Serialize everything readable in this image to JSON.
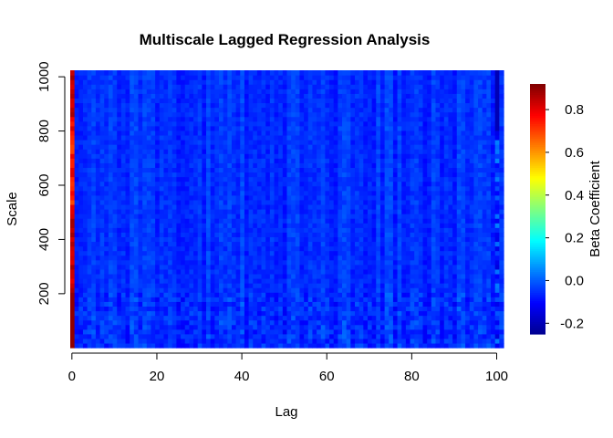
{
  "chart_data": {
    "type": "heatmap",
    "title": "Multiscale Lagged Regression Analysis",
    "xlabel": "Lag",
    "ylabel": "Scale",
    "colorbar_label": "Beta Coefficient",
    "x_range": [
      0,
      101
    ],
    "y_range": [
      1,
      1024
    ],
    "x_ticks": [
      0,
      20,
      40,
      60,
      80,
      100
    ],
    "y_ticks": [
      200,
      400,
      600,
      800,
      1000
    ],
    "colorbar_range": [
      -0.25,
      0.92
    ],
    "colorbar_ticks": [
      -0.2,
      0.0,
      0.2,
      0.4,
      0.6,
      0.8
    ],
    "colormap": "jet",
    "summary_values": {
      "lag_0_scale_1_to_200": 0.9,
      "lag_0_scale_500_to_850": 0.75,
      "lag_100_scale_800_to_1000": -0.2,
      "lags_1_to_99_typical": -0.05,
      "lags_1_to_99_range": [
        -0.12,
        0.05
      ]
    }
  }
}
